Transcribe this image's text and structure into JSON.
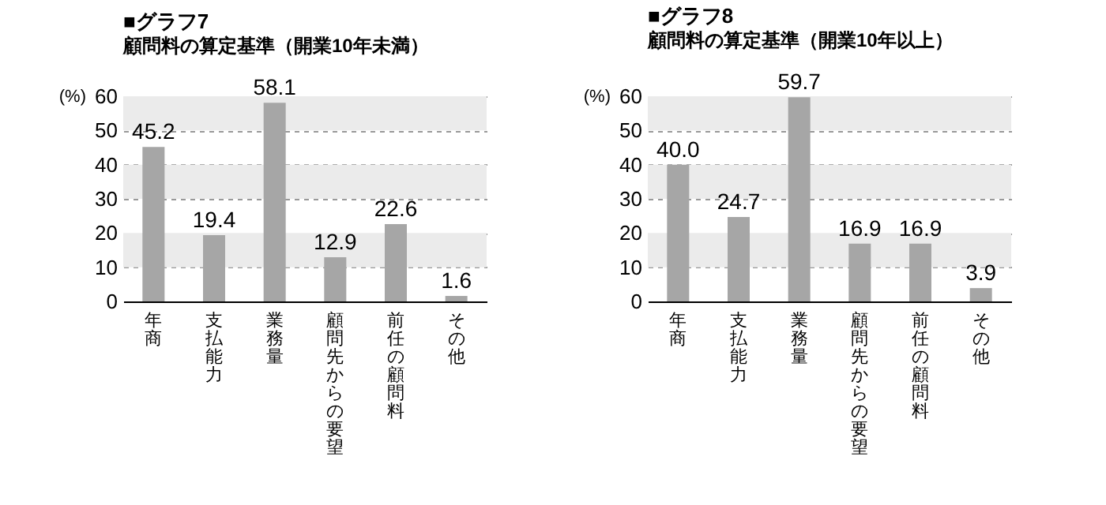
{
  "chart_data": [
    {
      "type": "bar",
      "title": "■グラフ7",
      "subtitle": "顧問料の算定基準（開業10年未満）",
      "ylabel": "(%)",
      "categories": [
        "年商",
        "支払能力",
        "業務量",
        "顧問先からの要望",
        "前任の顧問料",
        "その他"
      ],
      "values": [
        45.2,
        19.4,
        58.1,
        12.9,
        22.6,
        1.6
      ],
      "data_labels": true,
      "value_labels": [
        "45.2",
        "19.4",
        "58.1",
        "12.9",
        "22.6",
        "1.6"
      ],
      "color": "#a6a6a6",
      "ylim": [
        0,
        60
      ],
      "yticks": [
        0,
        10,
        20,
        30,
        40,
        50,
        60
      ],
      "grid": "y",
      "bands": [
        {
          "axis": "y",
          "from": 10,
          "to": 20,
          "color": "#ebebeb"
        },
        {
          "axis": "y",
          "from": 30,
          "to": 40,
          "color": "#ebebeb"
        },
        {
          "axis": "y",
          "from": 50,
          "to": 60,
          "color": "#ebebeb"
        }
      ]
    },
    {
      "type": "bar",
      "title": "■グラフ8",
      "subtitle": "顧問料の算定基準（開業10年以上）",
      "ylabel": "(%)",
      "categories": [
        "年商",
        "支払能力",
        "業務量",
        "顧問先からの要望",
        "前任の顧問料",
        "その他"
      ],
      "values": [
        40.0,
        24.7,
        59.7,
        16.9,
        16.9,
        3.9
      ],
      "data_labels": true,
      "value_labels": [
        "40.0",
        "24.7",
        "59.7",
        "16.9",
        "16.9",
        "3.9"
      ],
      "color": "#a6a6a6",
      "ylim": [
        0,
        60
      ],
      "yticks": [
        0,
        10,
        20,
        30,
        40,
        50,
        60
      ],
      "grid": "y",
      "bands": [
        {
          "axis": "y",
          "from": 10,
          "to": 20,
          "color": "#ebebeb"
        },
        {
          "axis": "y",
          "from": 30,
          "to": 40,
          "color": "#ebebeb"
        },
        {
          "axis": "y",
          "from": 50,
          "to": 60,
          "color": "#ebebeb"
        }
      ]
    }
  ]
}
